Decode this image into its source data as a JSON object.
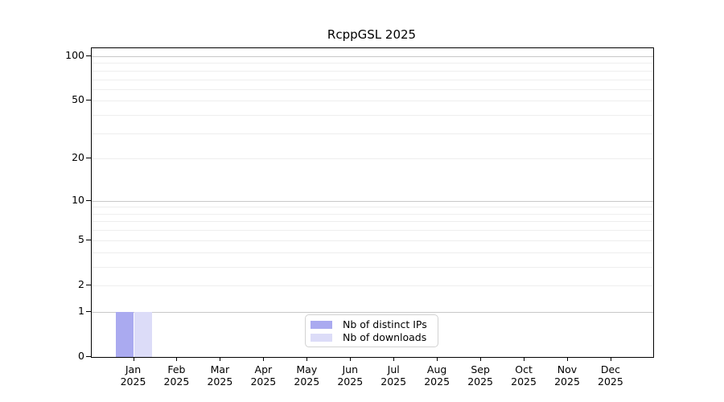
{
  "chart_data": {
    "type": "bar",
    "title": "RcppGSL 2025",
    "categories": [
      {
        "month": "Jan",
        "year": "2025"
      },
      {
        "month": "Feb",
        "year": "2025"
      },
      {
        "month": "Mar",
        "year": "2025"
      },
      {
        "month": "Apr",
        "year": "2025"
      },
      {
        "month": "May",
        "year": "2025"
      },
      {
        "month": "Jun",
        "year": "2025"
      },
      {
        "month": "Jul",
        "year": "2025"
      },
      {
        "month": "Aug",
        "year": "2025"
      },
      {
        "month": "Sep",
        "year": "2025"
      },
      {
        "month": "Oct",
        "year": "2025"
      },
      {
        "month": "Nov",
        "year": "2025"
      },
      {
        "month": "Dec",
        "year": "2025"
      }
    ],
    "series": [
      {
        "name": "Nb of distinct IPs",
        "color": "#aaaaf0",
        "values": [
          1,
          0,
          0,
          0,
          0,
          0,
          0,
          0,
          0,
          0,
          0,
          0
        ]
      },
      {
        "name": "Nb of downloads",
        "color": "#dcdcf8",
        "values": [
          1,
          0,
          0,
          0,
          0,
          0,
          0,
          0,
          0,
          0,
          0,
          0
        ]
      }
    ],
    "y_axis": {
      "scale": "log1p",
      "ylim": [
        0,
        100
      ],
      "labeled_ticks": [
        100,
        50,
        20,
        10,
        5,
        2,
        1,
        0
      ],
      "major_gridlines": [
        1,
        10,
        100
      ],
      "minor_gridlines": [
        2,
        3,
        4,
        5,
        6,
        7,
        8,
        9,
        20,
        30,
        40,
        50,
        60,
        70,
        80,
        90
      ]
    },
    "legend": {
      "position": "bottom-center"
    },
    "colors": {
      "grid_major": "#c8c8c8",
      "grid_minor": "#eeeeee",
      "axis": "#000000",
      "text": "#000000"
    }
  }
}
